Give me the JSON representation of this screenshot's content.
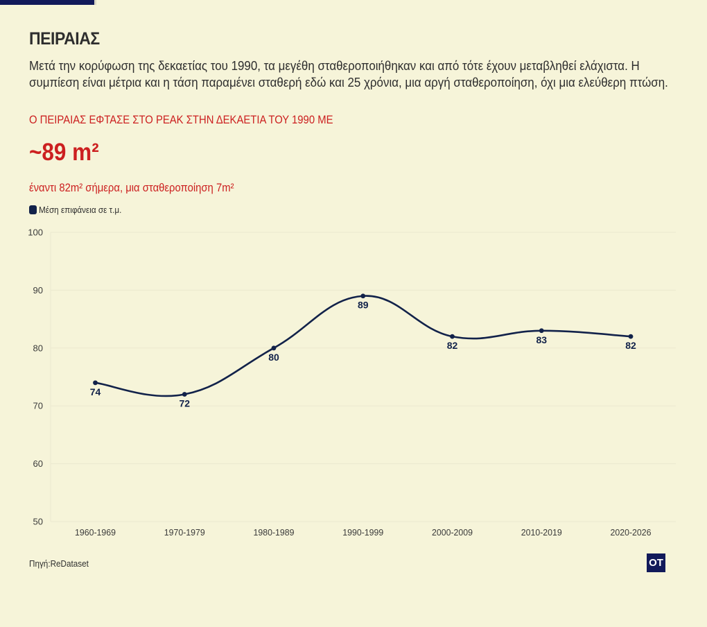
{
  "header": {
    "title": "ΠΕΙΡΑΙΑΣ",
    "description": "Μετά την κορύφωση της δεκαετίας του 1990, τα μεγέθη σταθεροποιήθηκαν και από τότε έχουν μεταβληθεί ελάχιστα. Η συμπίεση είναι μέτρια και η τάση παραμένει σταθερή εδώ και 25 χρόνια, μια αργή σταθεροποίηση, όχι μια ελεύθερη πτώση.",
    "peak_heading": "Ο ΠΕΙΡΑΙΑΣ ΕΦΤΑΣΕ ΣΤΟ ΡΕΑΚ ΣΤΗΝ ΔΕΚΑΕΤΙΑ ΤΟΥ 1990 ΜΕ",
    "big_value": "~89 m²",
    "sub_note": "έναντι 82m² σήμερα, μια σταθεροποίηση 7m²"
  },
  "legend": {
    "label": "Μέση επιφάνεια σε τ.μ."
  },
  "footer": {
    "source": "Πηγή:ReDataset",
    "logo_text": "OT"
  },
  "colors": {
    "background": "#f6f4d9",
    "series": "#12224a",
    "accent": "#cc2020",
    "brand": "#121a5a",
    "grid": "#ebe8cf"
  },
  "chart_data": {
    "type": "line",
    "categories": [
      "1960-1969",
      "1970-1979",
      "1980-1989",
      "1990-1999",
      "2000-2009",
      "2010-2019",
      "2020-2026"
    ],
    "series": [
      {
        "name": "Μέση επιφάνεια σε τ.μ.",
        "values": [
          74,
          72,
          80,
          89,
          82,
          83,
          82
        ]
      }
    ],
    "ylim": [
      50,
      100
    ],
    "yticks": [
      50,
      60,
      70,
      80,
      90,
      100
    ],
    "grid": true,
    "legend_position": "top-left",
    "data_labels": true,
    "smooth": true
  }
}
